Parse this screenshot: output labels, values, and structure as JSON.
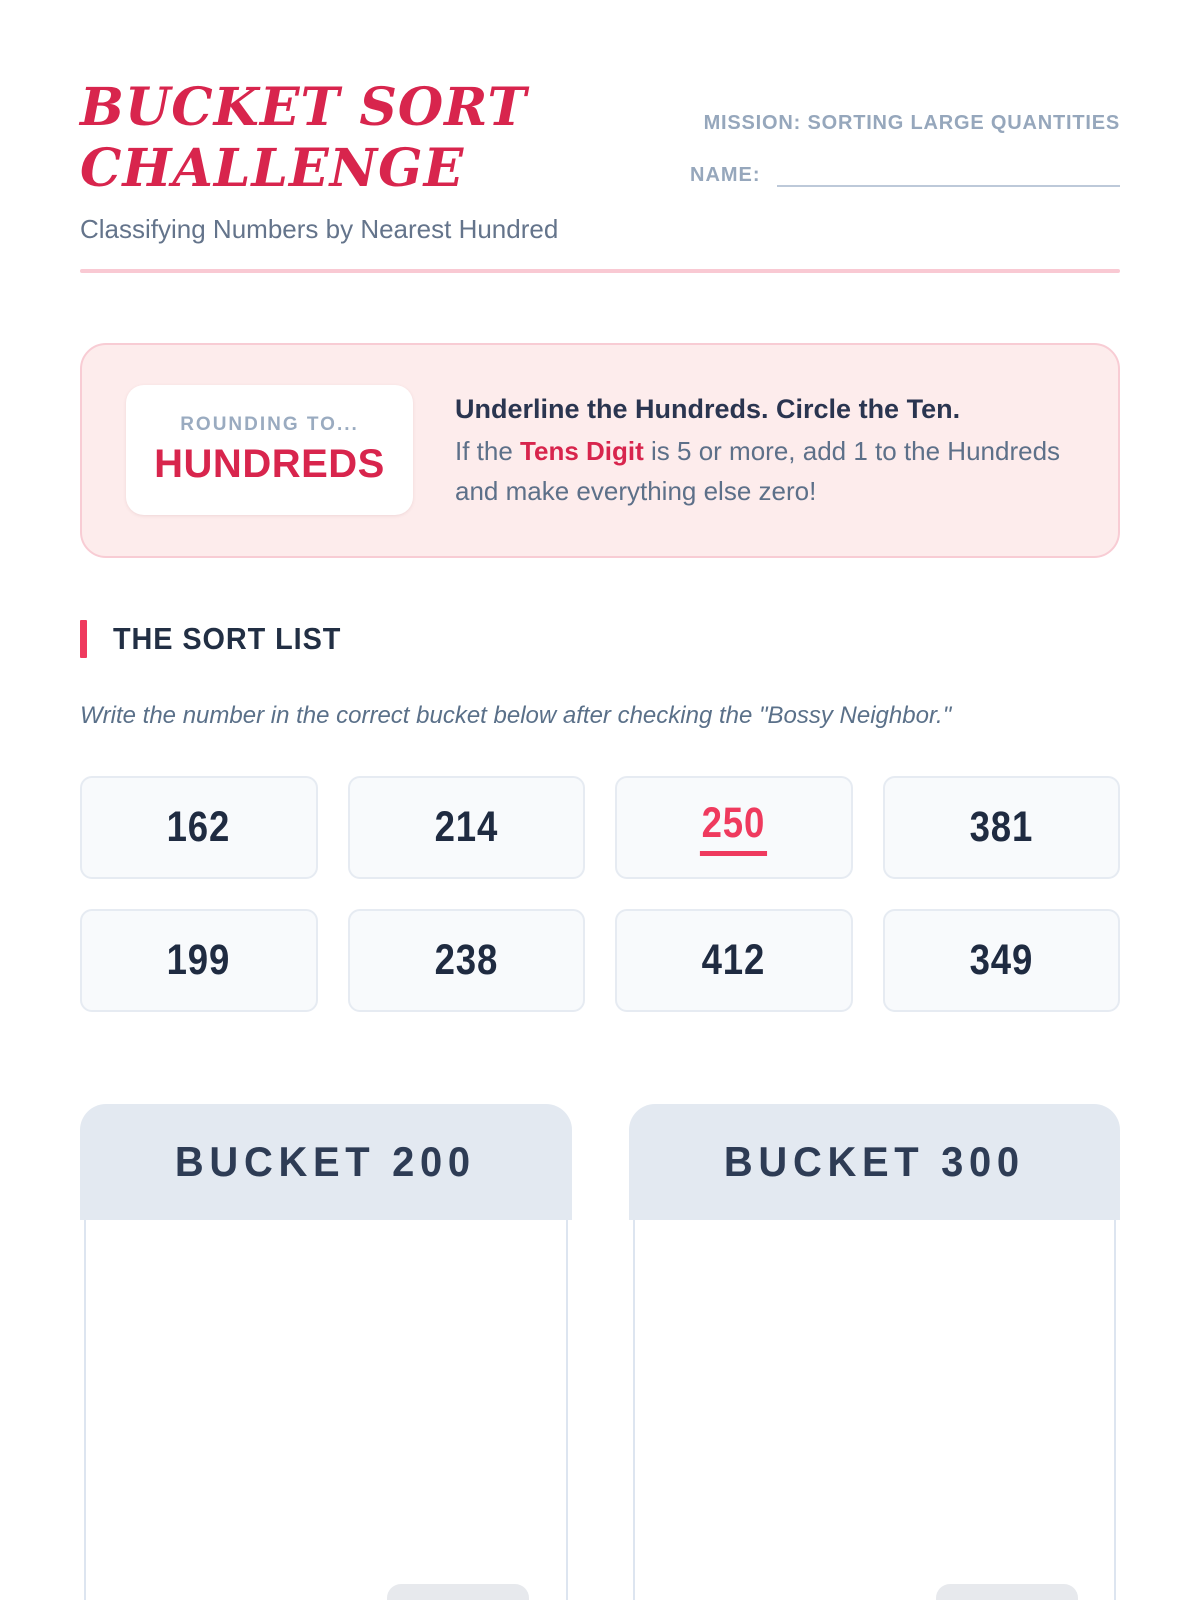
{
  "header": {
    "title_line1": "BUCKET SORT",
    "title_line2": "CHALLENGE",
    "subtitle": "Classifying Numbers by Nearest Hundred",
    "mission_label": "MISSION: SORTING LARGE QUANTITIES",
    "name_label": "NAME:",
    "name_value": ""
  },
  "instruction_box": {
    "badge_title": "ROUNDING TO...",
    "badge_value": "HUNDREDS",
    "headline": "Underline the Hundreds. Circle the Ten.",
    "rule_prefix": "If the ",
    "rule_highlight": "Tens Digit",
    "rule_suffix": " is 5 or more, add 1 to the Hundreds and make everything else zero!"
  },
  "sort_list": {
    "section_title": "THE SORT LIST",
    "helper_text": "Write the number in the correct bucket below after checking the \"Bossy Neighbor.\"",
    "numbers": [
      "162",
      "214",
      "250",
      "381",
      "199",
      "238",
      "412",
      "349"
    ],
    "highlighted_number": "250"
  },
  "buckets": [
    {
      "label": "BUCKET 200"
    },
    {
      "label": "BUCKET 300"
    }
  ],
  "colors": {
    "primary_red": "#d8254d",
    "bright_red": "#ef3a5e",
    "pink_background": "#fdecec",
    "pink_border": "#f8ccd4",
    "navy_text": "#1f2b41",
    "slate_text": "#5d7089",
    "muted_slate_text": "#96a7bc",
    "card_background": "#f8fafc",
    "bucket_header_background": "#e3e9f1"
  }
}
